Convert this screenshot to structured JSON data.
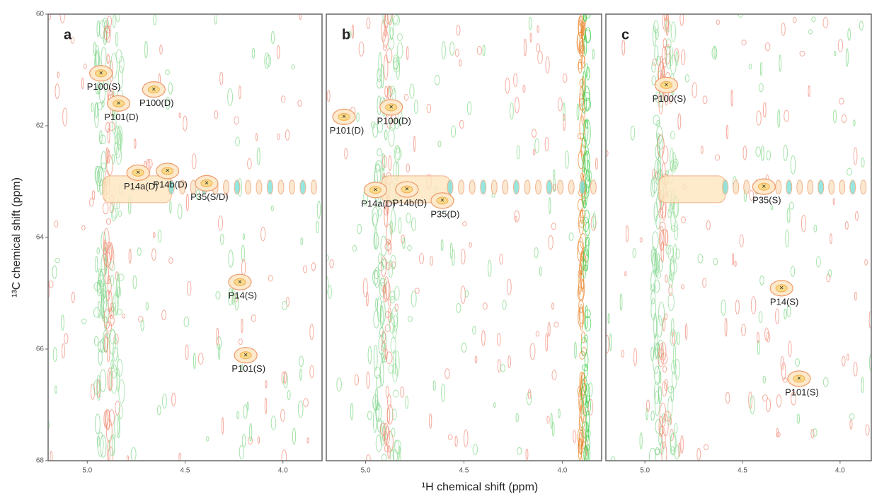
{
  "chart_data": [
    {
      "type": "scatter",
      "title": "a",
      "ylabel": "¹³C chemical shift (ppm)",
      "xlim": [
        5.2,
        3.8
      ],
      "ylim": [
        60,
        68
      ],
      "xticks": [
        {
          "value": 5,
          "label": "5.0"
        },
        4.5,
        {
          "value": 4,
          "label": "4.0"
        }
      ],
      "yticks": [
        60,
        62,
        64,
        66,
        68
      ],
      "x": [
        4.93,
        4.66,
        4.84,
        4.59,
        4.74,
        4.39,
        4.22,
        4.19
      ],
      "values": [
        61.06,
        61.35,
        61.6,
        62.81,
        62.84,
        63.03,
        64.8,
        66.11
      ],
      "point_labels": [
        "P100(S)",
        "P100(D)",
        "P101(D)",
        "P14b(D)",
        "P14a(D)",
        "P35(S/D)",
        "P14(S)",
        "P101(S)"
      ]
    },
    {
      "type": "scatter",
      "title": "b",
      "xlabel": "¹H  chemical shift (ppm)",
      "xlim": [
        5.2,
        3.8
      ],
      "ylim": [
        60,
        68
      ],
      "xticks": [
        {
          "value": 5,
          "label": "5.0"
        },
        4.5,
        {
          "value": 4,
          "label": "4.0"
        }
      ],
      "x": [
        4.87,
        5.11,
        4.79,
        4.95,
        4.61
      ],
      "values": [
        61.67,
        61.84,
        63.14,
        63.15,
        63.34
      ],
      "point_labels": [
        "P100(D)",
        "P101(D)",
        "P14b(D)",
        "P14a(D)",
        "P35(D)"
      ]
    },
    {
      "type": "scatter",
      "title": "c",
      "xlim": [
        5.2,
        3.84
      ],
      "ylim": [
        60,
        68
      ],
      "xticks": [
        {
          "value": 5,
          "label": "5.0"
        },
        4.5,
        {
          "value": 4,
          "label": "4.0"
        }
      ],
      "x": [
        4.89,
        4.39,
        4.3,
        4.21
      ],
      "values": [
        61.27,
        63.09,
        64.91,
        66.53
      ],
      "point_labels": [
        "P100(S)",
        "P35(S)",
        "P14(S)",
        "P101(S)"
      ]
    }
  ]
}
